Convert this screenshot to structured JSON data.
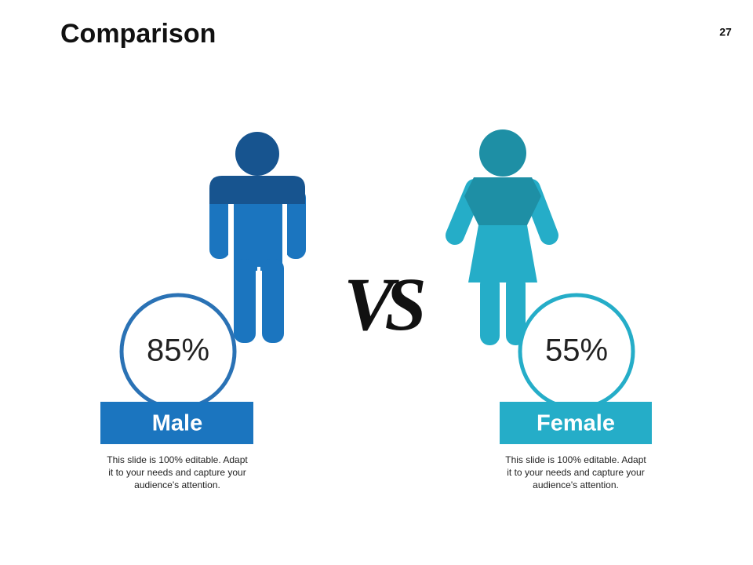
{
  "header": {
    "title": "Comparison",
    "page_number": "27"
  },
  "vs": "VS",
  "panels": [
    {
      "percent": "85%",
      "label": "Male",
      "description": [
        "This slide is 100% editable. Adapt",
        "it to your needs and capture your",
        "audience's attention."
      ]
    },
    {
      "percent": "55%",
      "label": "Female",
      "description": [
        "This slide is 100% editable. Adapt",
        "it to your needs and capture your",
        "audience's attention."
      ]
    }
  ]
}
